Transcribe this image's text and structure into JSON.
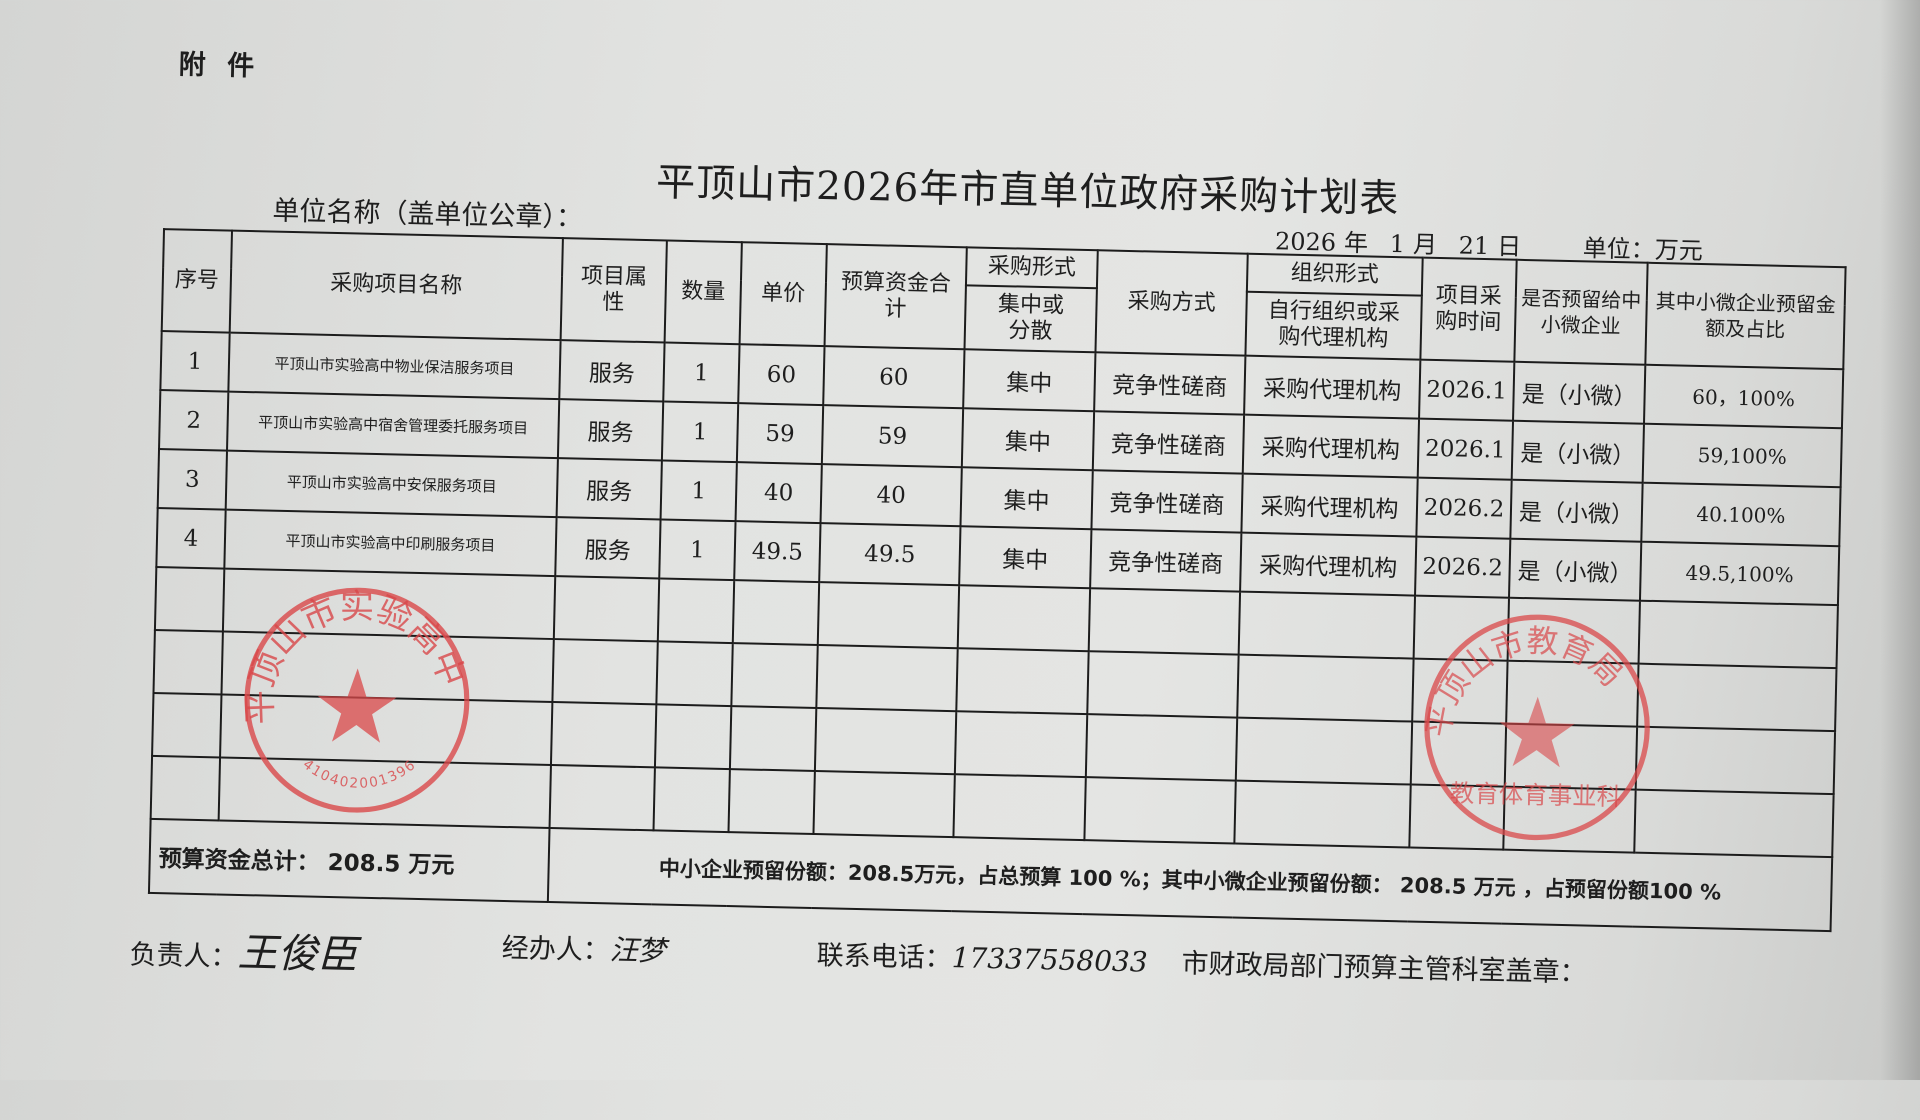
{
  "header": {
    "attachment": "附 件",
    "title": "平顶山市2026年市直单位政府采购计划表",
    "unit_name_label": "单位名称（盖单位公章）：",
    "date": {
      "year": "2026",
      "year_unit": "年",
      "month": "1",
      "month_unit": "月",
      "day": "21",
      "day_unit": "日"
    },
    "unit_label": "单位：万元"
  },
  "table": {
    "columns": {
      "no": "序号",
      "name": "采购项目名称",
      "attr": "项目属性",
      "qty": "数量",
      "price": "单价",
      "budget": "预算资金合计",
      "form_group": "采购形式",
      "form_sub": "集中或分散",
      "method": "采购方式",
      "org_group": "组织形式",
      "org_sub": "自行组织或采购代理机构",
      "time": "项目采购时间",
      "reserved": "是否预留给中小微企业",
      "micro": "其中小微企业预留金额及占比"
    },
    "rows": [
      {
        "no": "1",
        "name": "平顶山市实验高中物业保洁服务项目",
        "attr": "服务",
        "qty": "1",
        "price": "60",
        "budget": "60",
        "form": "集中",
        "method": "竞争性磋商",
        "org": "采购代理机构",
        "time": "2026.1",
        "reserved": "是（小微）",
        "micro": "60，100%"
      },
      {
        "no": "2",
        "name": "平顶山市实验高中宿舍管理委托服务项目",
        "attr": "服务",
        "qty": "1",
        "price": "59",
        "budget": "59",
        "form": "集中",
        "method": "竞争性磋商",
        "org": "采购代理机构",
        "time": "2026.1",
        "reserved": "是（小微）",
        "micro": "59,100%"
      },
      {
        "no": "3",
        "name": "平顶山市实验高中安保服务项目",
        "attr": "服务",
        "qty": "1",
        "price": "40",
        "budget": "40",
        "form": "集中",
        "method": "竞争性磋商",
        "org": "采购代理机构",
        "time": "2026.2",
        "reserved": "是（小微）",
        "micro": "40.100%"
      },
      {
        "no": "4",
        "name": "平顶山市实验高中印刷服务项目",
        "attr": "服务",
        "qty": "1",
        "price": "49.5",
        "budget": "49.5",
        "form": "集中",
        "method": "竞争性磋商",
        "org": "采购代理机构",
        "time": "2026.2",
        "reserved": "是（小微）",
        "micro": "49.5,100%"
      }
    ],
    "footer": {
      "total": "预算资金总计：  208.5 万元",
      "sme": "中小企业预留份额：208.5万元，占总预算 100 %；其中小微企业预留份额：   208.5 万元 ，占预留份额100 %"
    }
  },
  "signatures": {
    "responsible_label": "负责人：",
    "responsible_sign": "王俊臣",
    "handler_label": "经办人：",
    "handler_sign": "汪梦",
    "phone_label": "联系电话：",
    "phone": "17337558033",
    "finance_label": "市财政局部门预算主管科室盖章："
  },
  "stamps": {
    "school": {
      "text": "平顶山市实验高中",
      "code": "4104020013963",
      "color": "#d9484a"
    },
    "bureau": {
      "text": "平顶山市教育局",
      "sub": "教育体育事业科",
      "color": "#d9484a"
    }
  }
}
